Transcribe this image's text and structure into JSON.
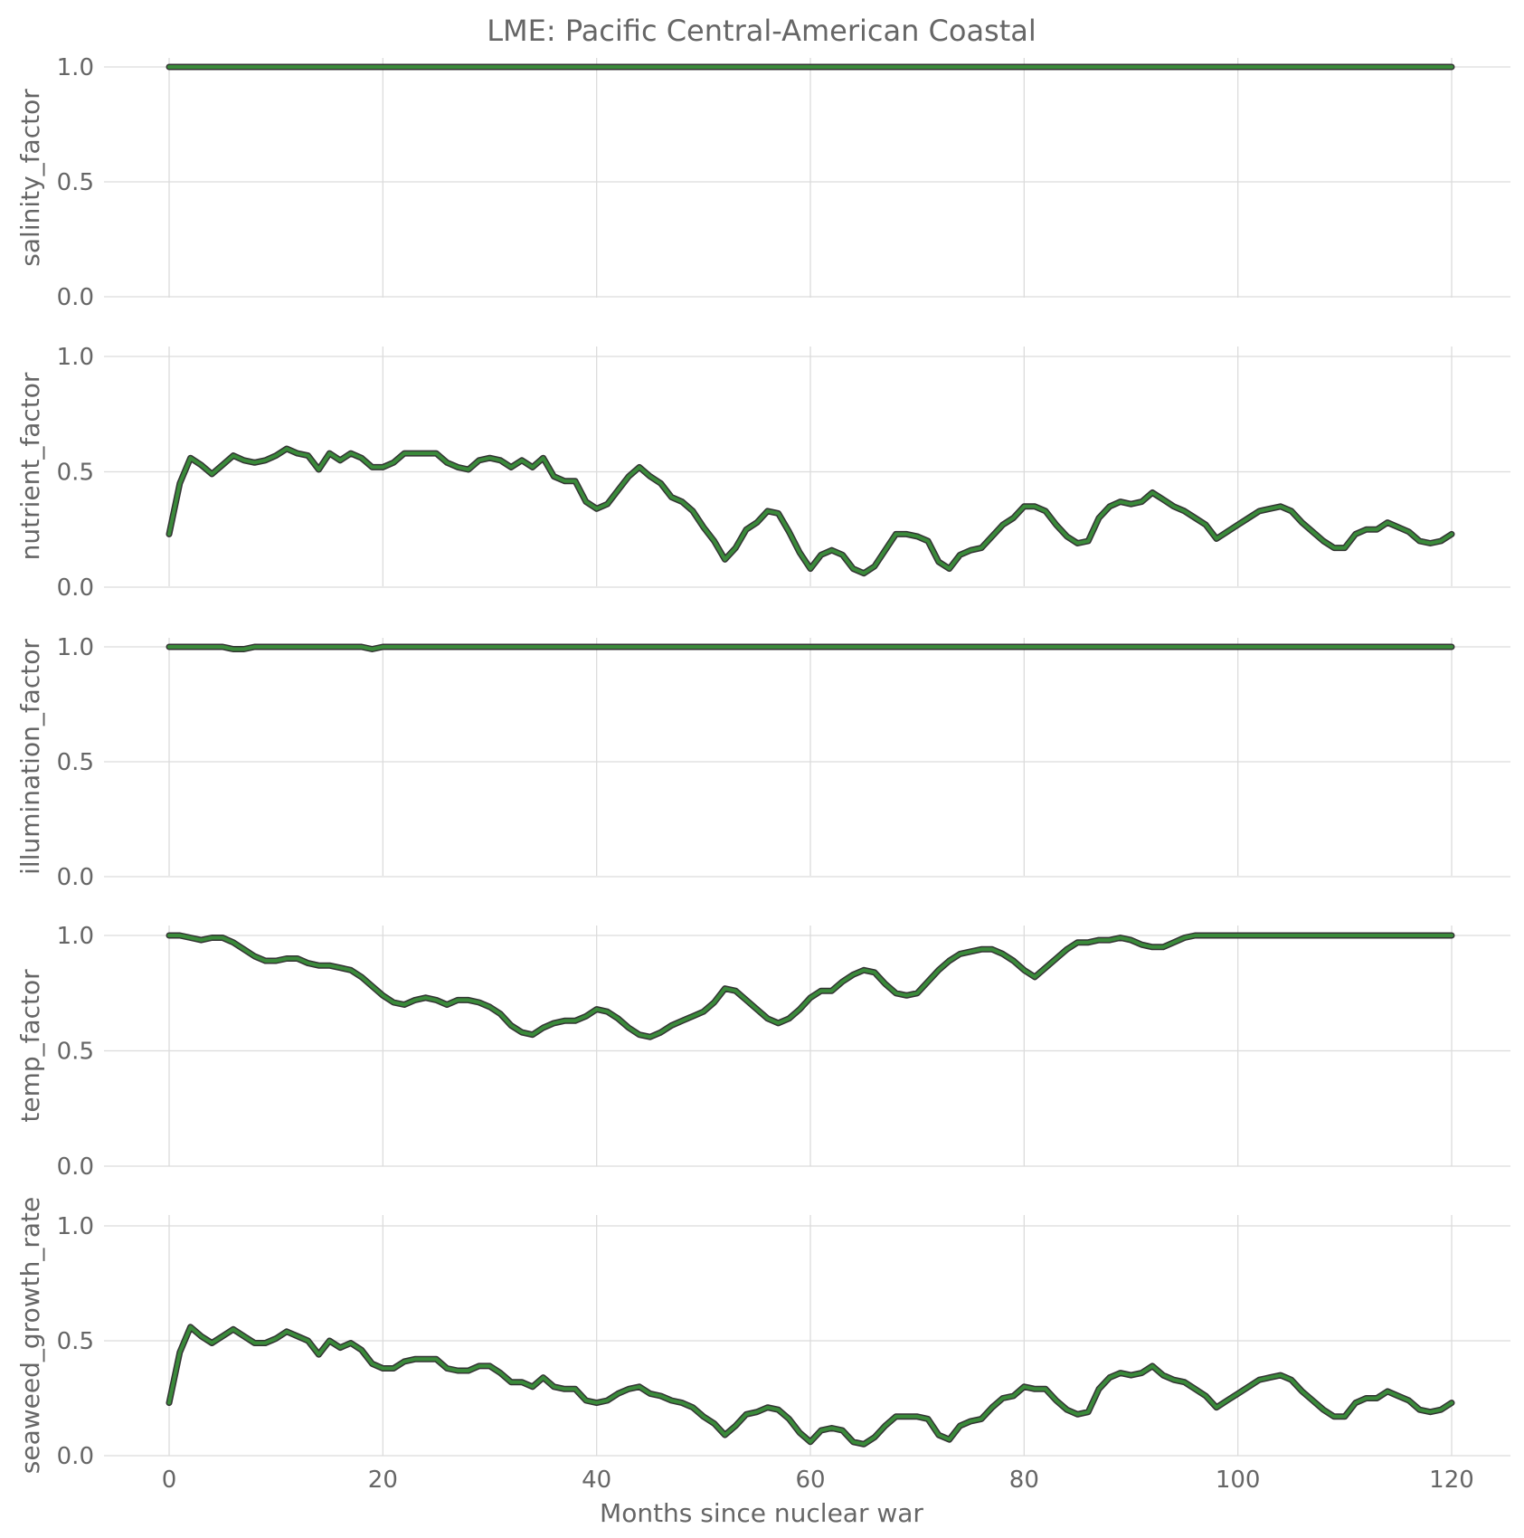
{
  "chart_data": {
    "type": "line",
    "title": "LME: Pacific Central-American Coastal",
    "xlabel": "Months since nuclear war",
    "xlim": [
      -6,
      126
    ],
    "xticks": [
      0,
      20,
      40,
      60,
      80,
      100,
      120
    ],
    "ylim": [
      0,
      1
    ],
    "yticks": [
      0.0,
      0.5,
      1.0
    ],
    "grid": true,
    "line_color": "#3a8a3a",
    "line_edge_color": "#333333",
    "panels": [
      {
        "ylabel": "salinity_factor",
        "x": [
          0,
          120
        ],
        "y": [
          1.0,
          1.0
        ]
      },
      {
        "ylabel": "nutrient_factor",
        "x": [
          0,
          1,
          2,
          3,
          4,
          5,
          6,
          7,
          8,
          9,
          10,
          11,
          12,
          13,
          14,
          15,
          16,
          17,
          18,
          19,
          20,
          21,
          22,
          23,
          24,
          25,
          26,
          27,
          28,
          29,
          30,
          31,
          32,
          33,
          34,
          35,
          36,
          37,
          38,
          39,
          40,
          41,
          42,
          43,
          44,
          45,
          46,
          47,
          48,
          49,
          50,
          51,
          52,
          53,
          54,
          55,
          56,
          57,
          58,
          59,
          60,
          61,
          62,
          63,
          64,
          65,
          66,
          67,
          68,
          69,
          70,
          71,
          72,
          73,
          74,
          75,
          76,
          77,
          78,
          79,
          80,
          81,
          82,
          83,
          84,
          85,
          86,
          87,
          88,
          89,
          90,
          91,
          92,
          93,
          94,
          95,
          96,
          97,
          98,
          99,
          100,
          101,
          102,
          103,
          104,
          105,
          106,
          107,
          108,
          109,
          110,
          111,
          112,
          113,
          114,
          115,
          116,
          117,
          118,
          119,
          120
        ],
        "y": [
          0.23,
          0.45,
          0.56,
          0.53,
          0.49,
          0.53,
          0.57,
          0.55,
          0.54,
          0.55,
          0.57,
          0.6,
          0.58,
          0.57,
          0.51,
          0.58,
          0.55,
          0.58,
          0.56,
          0.52,
          0.52,
          0.54,
          0.58,
          0.58,
          0.58,
          0.58,
          0.54,
          0.52,
          0.51,
          0.55,
          0.56,
          0.55,
          0.52,
          0.55,
          0.52,
          0.56,
          0.48,
          0.46,
          0.46,
          0.37,
          0.34,
          0.36,
          0.42,
          0.48,
          0.52,
          0.48,
          0.45,
          0.39,
          0.37,
          0.33,
          0.26,
          0.2,
          0.12,
          0.17,
          0.25,
          0.28,
          0.33,
          0.32,
          0.24,
          0.15,
          0.08,
          0.14,
          0.16,
          0.14,
          0.08,
          0.06,
          0.09,
          0.16,
          0.23,
          0.23,
          0.22,
          0.2,
          0.11,
          0.08,
          0.14,
          0.16,
          0.17,
          0.22,
          0.27,
          0.3,
          0.35,
          0.35,
          0.33,
          0.27,
          0.22,
          0.19,
          0.2,
          0.3,
          0.35,
          0.37,
          0.36,
          0.37,
          0.41,
          0.38,
          0.35,
          0.33,
          0.3,
          0.27,
          0.21,
          0.24,
          0.27,
          0.3,
          0.33,
          0.34,
          0.35,
          0.33,
          0.28,
          0.24,
          0.2,
          0.17,
          0.17,
          0.23,
          0.25,
          0.25,
          0.28,
          0.26,
          0.24,
          0.2,
          0.19,
          0.2,
          0.23
        ]
      },
      {
        "ylabel": "illumination_factor",
        "x": [
          0,
          4,
          5,
          6,
          7,
          8,
          9,
          10,
          18,
          19,
          20,
          21,
          120
        ],
        "y": [
          1.0,
          1.0,
          1.0,
          0.99,
          0.99,
          1.0,
          1.0,
          1.0,
          1.0,
          0.99,
          1.0,
          1.0,
          1.0
        ]
      },
      {
        "ylabel": "temp_factor",
        "x": [
          0,
          1,
          2,
          3,
          4,
          5,
          6,
          7,
          8,
          9,
          10,
          11,
          12,
          13,
          14,
          15,
          16,
          17,
          18,
          19,
          20,
          21,
          22,
          23,
          24,
          25,
          26,
          27,
          28,
          29,
          30,
          31,
          32,
          33,
          34,
          35,
          36,
          37,
          38,
          39,
          40,
          41,
          42,
          43,
          44,
          45,
          46,
          47,
          48,
          49,
          50,
          51,
          52,
          53,
          54,
          55,
          56,
          57,
          58,
          59,
          60,
          61,
          62,
          63,
          64,
          65,
          66,
          67,
          68,
          69,
          70,
          71,
          72,
          73,
          74,
          75,
          76,
          77,
          78,
          79,
          80,
          81,
          82,
          83,
          84,
          85,
          86,
          87,
          88,
          89,
          90,
          91,
          92,
          93,
          94,
          95,
          96,
          97,
          98,
          99,
          100,
          101,
          102,
          103,
          104,
          105,
          106,
          107,
          108,
          109,
          110,
          111,
          112,
          113,
          114,
          115,
          116,
          117,
          118,
          119,
          120
        ],
        "y": [
          1.0,
          1.0,
          0.99,
          0.98,
          0.99,
          0.99,
          0.97,
          0.94,
          0.91,
          0.89,
          0.89,
          0.9,
          0.9,
          0.88,
          0.87,
          0.87,
          0.86,
          0.85,
          0.82,
          0.78,
          0.74,
          0.71,
          0.7,
          0.72,
          0.73,
          0.72,
          0.7,
          0.72,
          0.72,
          0.71,
          0.69,
          0.66,
          0.61,
          0.58,
          0.57,
          0.6,
          0.62,
          0.63,
          0.63,
          0.65,
          0.68,
          0.67,
          0.64,
          0.6,
          0.57,
          0.56,
          0.58,
          0.61,
          0.63,
          0.65,
          0.67,
          0.71,
          0.77,
          0.76,
          0.72,
          0.68,
          0.64,
          0.62,
          0.64,
          0.68,
          0.73,
          0.76,
          0.76,
          0.8,
          0.83,
          0.85,
          0.84,
          0.79,
          0.75,
          0.74,
          0.75,
          0.8,
          0.85,
          0.89,
          0.92,
          0.93,
          0.94,
          0.94,
          0.92,
          0.89,
          0.85,
          0.82,
          0.86,
          0.9,
          0.94,
          0.97,
          0.97,
          0.98,
          0.98,
          0.99,
          0.98,
          0.96,
          0.95,
          0.95,
          0.97,
          0.99,
          1.0,
          1.0,
          1.0,
          1.0,
          1.0,
          1.0,
          1.0,
          1.0,
          1.0,
          1.0,
          1.0,
          1.0,
          1.0,
          1.0,
          1.0,
          1.0,
          1.0,
          1.0,
          1.0,
          1.0,
          1.0,
          1.0,
          1.0,
          1.0,
          1.0
        ]
      },
      {
        "ylabel": "seaweed_growth_rate",
        "x": [
          0,
          1,
          2,
          3,
          4,
          5,
          6,
          7,
          8,
          9,
          10,
          11,
          12,
          13,
          14,
          15,
          16,
          17,
          18,
          19,
          20,
          21,
          22,
          23,
          24,
          25,
          26,
          27,
          28,
          29,
          30,
          31,
          32,
          33,
          34,
          35,
          36,
          37,
          38,
          39,
          40,
          41,
          42,
          43,
          44,
          45,
          46,
          47,
          48,
          49,
          50,
          51,
          52,
          53,
          54,
          55,
          56,
          57,
          58,
          59,
          60,
          61,
          62,
          63,
          64,
          65,
          66,
          67,
          68,
          69,
          70,
          71,
          72,
          73,
          74,
          75,
          76,
          77,
          78,
          79,
          80,
          81,
          82,
          83,
          84,
          85,
          86,
          87,
          88,
          89,
          90,
          91,
          92,
          93,
          94,
          95,
          96,
          97,
          98,
          99,
          100,
          101,
          102,
          103,
          104,
          105,
          106,
          107,
          108,
          109,
          110,
          111,
          112,
          113,
          114,
          115,
          116,
          117,
          118,
          119,
          120
        ],
        "y": [
          0.23,
          0.45,
          0.56,
          0.52,
          0.49,
          0.52,
          0.55,
          0.52,
          0.49,
          0.49,
          0.51,
          0.54,
          0.52,
          0.5,
          0.44,
          0.5,
          0.47,
          0.49,
          0.46,
          0.4,
          0.38,
          0.38,
          0.41,
          0.42,
          0.42,
          0.42,
          0.38,
          0.37,
          0.37,
          0.39,
          0.39,
          0.36,
          0.32,
          0.32,
          0.3,
          0.34,
          0.3,
          0.29,
          0.29,
          0.24,
          0.23,
          0.24,
          0.27,
          0.29,
          0.3,
          0.27,
          0.26,
          0.24,
          0.23,
          0.21,
          0.17,
          0.14,
          0.09,
          0.13,
          0.18,
          0.19,
          0.21,
          0.2,
          0.16,
          0.1,
          0.06,
          0.11,
          0.12,
          0.11,
          0.06,
          0.05,
          0.08,
          0.13,
          0.17,
          0.17,
          0.17,
          0.16,
          0.09,
          0.07,
          0.13,
          0.15,
          0.16,
          0.21,
          0.25,
          0.26,
          0.3,
          0.29,
          0.29,
          0.24,
          0.2,
          0.18,
          0.19,
          0.29,
          0.34,
          0.36,
          0.35,
          0.36,
          0.39,
          0.35,
          0.33,
          0.32,
          0.29,
          0.26,
          0.21,
          0.24,
          0.27,
          0.3,
          0.33,
          0.34,
          0.35,
          0.33,
          0.28,
          0.24,
          0.2,
          0.17,
          0.17,
          0.23,
          0.25,
          0.25,
          0.28,
          0.26,
          0.24,
          0.2,
          0.19,
          0.2,
          0.23
        ]
      }
    ]
  }
}
